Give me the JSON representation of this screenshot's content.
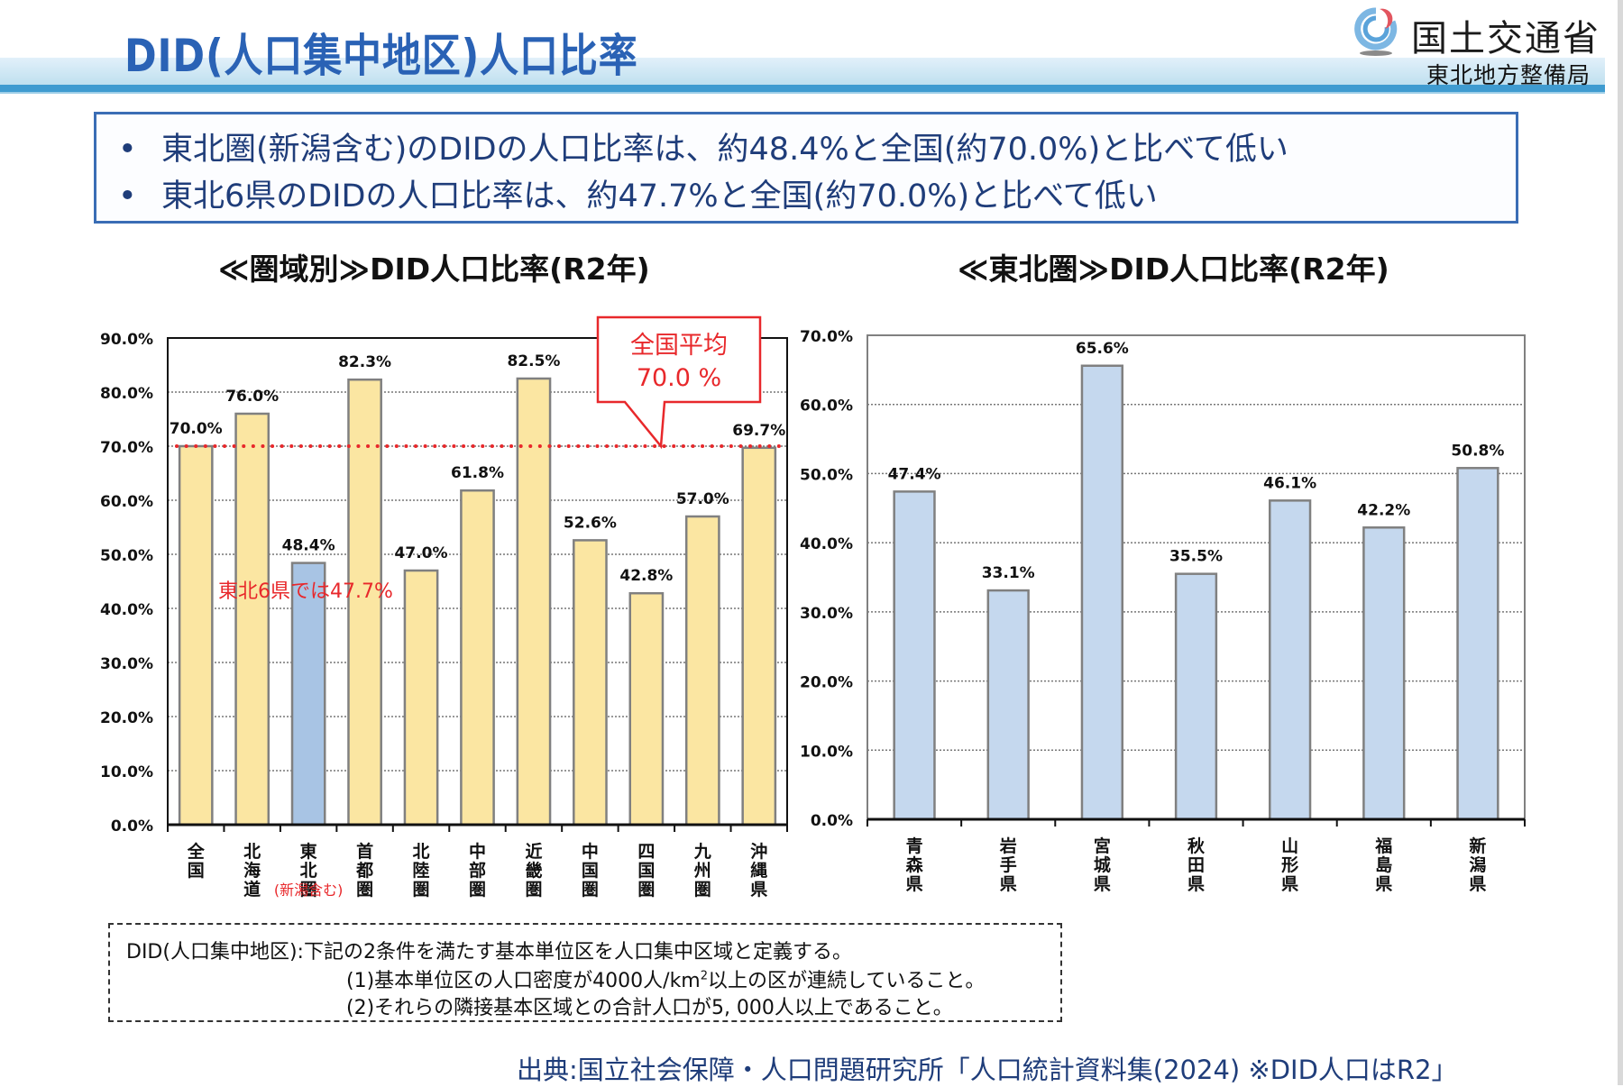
{
  "header": {
    "title": "DID(人口集中地区)人口比率",
    "ministry": "国土交通省",
    "bureau": "東北地方整備局",
    "logo_icon": "mlit-logo-icon"
  },
  "summary": {
    "bullet": "•",
    "items": [
      "東北圏(新潟含む)のDIDの人口比率は、約48.4%と全国(約70.0%)と比べて低い",
      "東北6県のDIDの人口比率は、約47.7%と全国(約70.0%)と比べて低い"
    ]
  },
  "colors": {
    "title_blue": "#2a62b5",
    "bar_yellow": "#fbe6a2",
    "bar_blue": "#a8c4e4",
    "bar_lightblue": "#c5d8ee",
    "bar_border": "#7a7a7a",
    "avg_red": "#e8282b"
  },
  "chart_data": [
    {
      "type": "bar",
      "title": "≪圏域別≫DID人口比率(R2年)",
      "categories": [
        "全国",
        "北海道",
        "東北圏",
        "首都圏",
        "北陸圏",
        "中部圏",
        "近畿圏",
        "中国圏",
        "四国圏",
        "九州圏",
        "沖縄県"
      ],
      "values": [
        70.0,
        76.0,
        48.4,
        82.3,
        47.0,
        61.8,
        82.5,
        52.6,
        42.8,
        57.0,
        69.7
      ],
      "value_labels": [
        "70.0%",
        "76.0%",
        "48.4%",
        "82.3%",
        "47.0%",
        "61.8%",
        "82.5%",
        "52.6%",
        "42.8%",
        "57.0%",
        "69.7%"
      ],
      "highlight_index": 2,
      "category_note": {
        "index": 2,
        "text": "(新潟含む)"
      },
      "ylim": [
        0,
        90
      ],
      "yticks": [
        "0.0%",
        "10.0%",
        "20.0%",
        "30.0%",
        "40.0%",
        "50.0%",
        "60.0%",
        "70.0%",
        "80.0%",
        "90.0%"
      ],
      "grid": true,
      "reference_line": {
        "value": 70.0,
        "style": "red-dotted"
      },
      "callout": {
        "line1": "全国平均",
        "line2": "70.0 %"
      },
      "annotation": "東北6県では47.7%",
      "xlabel": "",
      "ylabel": ""
    },
    {
      "type": "bar",
      "title": "≪東北圏≫DID人口比率(R2年)",
      "categories": [
        "青森県",
        "岩手県",
        "宮城県",
        "秋田県",
        "山形県",
        "福島県",
        "新潟県"
      ],
      "values": [
        47.4,
        33.1,
        65.6,
        35.5,
        46.1,
        42.2,
        50.8
      ],
      "value_labels": [
        "47.4%",
        "33.1%",
        "65.6%",
        "35.5%",
        "46.1%",
        "42.2%",
        "50.8%"
      ],
      "ylim": [
        0,
        70
      ],
      "yticks": [
        "0.0%",
        "10.0%",
        "20.0%",
        "30.0%",
        "40.0%",
        "50.0%",
        "60.0%",
        "70.0%"
      ],
      "grid": true,
      "xlabel": "",
      "ylabel": ""
    }
  ],
  "definition": {
    "line1": "DID(人口集中地区):下記の2条件を満たす基本単位区を人口集中区域と定義する。",
    "line2_pre": "(1)基本単位区の人口密度が4000人/km",
    "line2_sup": "2",
    "line2_post": "以上の区が連続していること。",
    "line3": "(2)それらの隣接基本区域との合計人口が5, 000人以上であること。"
  },
  "source": "出典:国立社会保障・人口問題研究所「人口統計資料集(2024) ※DID人口はR2」"
}
